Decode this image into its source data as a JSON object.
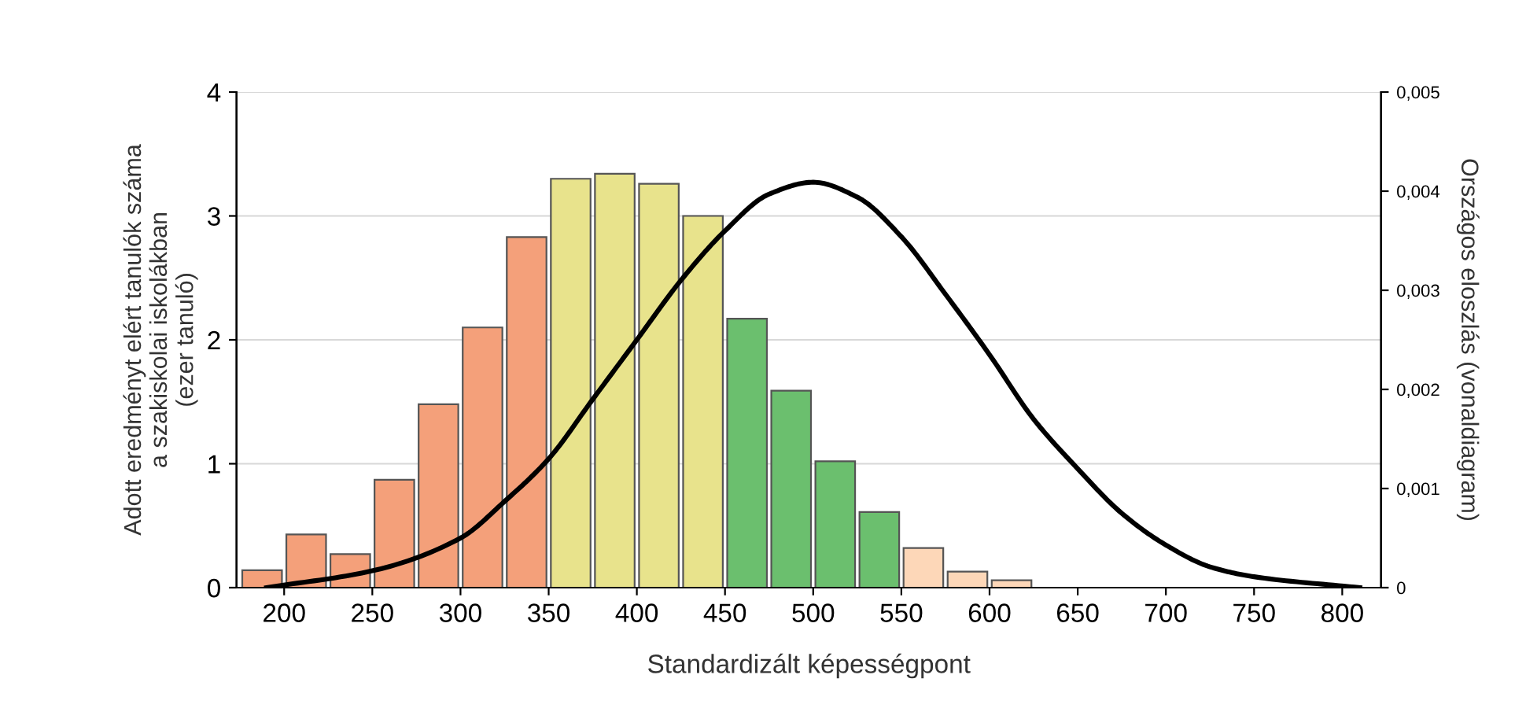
{
  "chart_data": {
    "type": "histogram",
    "xlabel": "Standardizált képességpont",
    "ylabel": "Adott eredményt elért tanulók száma\na szakiskolai iskolákban\n(ezer tanuló)",
    "y2label": "Országos eloszlás (vonaldiagram)",
    "xlim": [
      173,
      822
    ],
    "xticks": [
      200,
      250,
      300,
      350,
      400,
      450,
      500,
      550,
      600,
      650,
      700,
      750,
      800
    ],
    "ylim": [
      0,
      4
    ],
    "yticks": [
      0,
      1,
      2,
      3,
      4
    ],
    "y2lim": [
      0,
      0.005
    ],
    "y2ticks": [
      {
        "value": 0,
        "label": "0"
      },
      {
        "value": 0.001,
        "label": "0,001"
      },
      {
        "value": 0.002,
        "label": "0,002"
      },
      {
        "value": 0.003,
        "label": "0,003"
      },
      {
        "value": 0.004,
        "label": "0,004"
      },
      {
        "value": 0.005,
        "label": "0,005"
      }
    ],
    "grid": "y",
    "series": [
      {
        "bins": [
          175,
          200,
          225,
          250,
          275,
          300,
          325,
          350,
          375,
          400,
          425,
          450,
          475,
          500,
          525,
          550,
          575,
          600,
          625
        ],
        "values": [
          0.14,
          0.43,
          0.27,
          0.87,
          1.48,
          2.1,
          2.83,
          3.3,
          3.34,
          3.26,
          3.0,
          2.17,
          1.59,
          1.02,
          0.61,
          0.32,
          0.13,
          0.06
        ],
        "colors": [
          "#f4a07a",
          "#f4a07a",
          "#f4a07a",
          "#f4a07a",
          "#f4a07a",
          "#f4a07a",
          "#f4a07a",
          "#e8e38c",
          "#e8e38c",
          "#e8e38c",
          "#e8e38c",
          "#6bbf6e",
          "#6bbf6e",
          "#6bbf6e",
          "#6bbf6e",
          "#fdd7b8",
          "#fdd7b8",
          "#fdd7b8"
        ]
      },
      {
        "type": "line",
        "axis": "y2",
        "color": "#000000",
        "x": [
          190,
          250,
          300,
          325,
          350,
          375,
          400,
          425,
          450,
          475,
          500,
          525,
          550,
          575,
          600,
          625,
          650,
          675,
          700,
          725,
          750,
          810
        ],
        "values": [
          0,
          0.00017,
          0.0005,
          0.00087,
          0.0013,
          0.0019,
          0.0025,
          0.0031,
          0.0036,
          0.00397,
          0.00409,
          0.00394,
          0.00354,
          0.00296,
          0.00235,
          0.0017,
          0.0012,
          0.00075,
          0.00043,
          0.00021,
          0.00011,
          0
        ]
      }
    ]
  }
}
